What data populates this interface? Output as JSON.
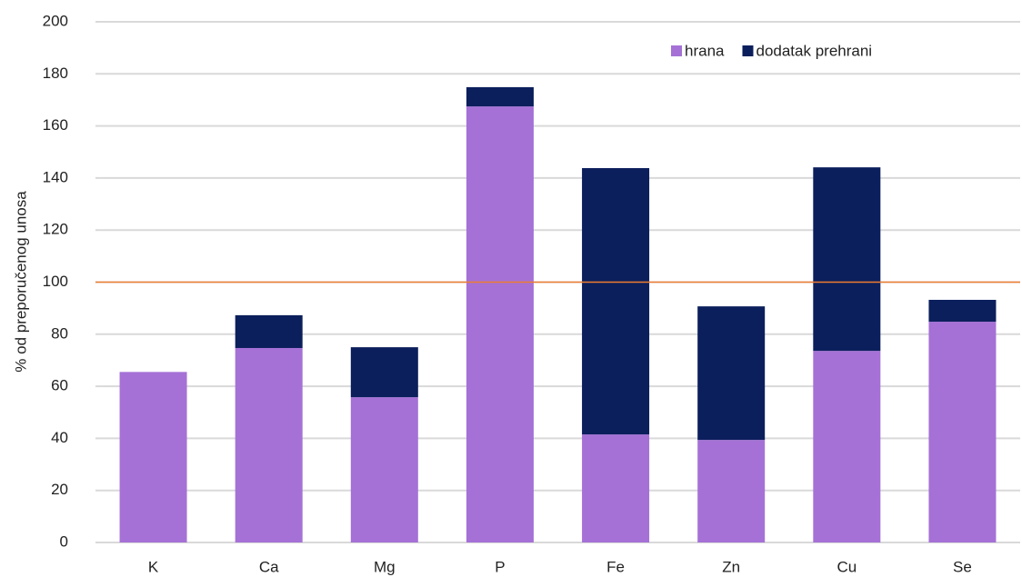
{
  "chart_data": {
    "type": "stacked_bar",
    "y_label": "% od preporučenog unosa",
    "categories": [
      "K",
      "Ca",
      "Mg",
      "P",
      "Fe",
      "Zn",
      "Cu",
      "Se"
    ],
    "series": [
      {
        "name": "hrana",
        "color": "#a571d6",
        "values": [
          65.5,
          74.7,
          55.8,
          167.5,
          41.5,
          39.4,
          73.6,
          84.8
        ]
      },
      {
        "name": "dodatak prehrani",
        "color": "#0b1f5c",
        "values": [
          0,
          12.6,
          19.2,
          7.4,
          102.3,
          51.3,
          70.5,
          8.4
        ]
      }
    ],
    "reference_line": 100,
    "reference_color": "#ed7d31",
    "ylim": [
      0,
      200
    ],
    "yticks": [
      0,
      20,
      40,
      60,
      80,
      100,
      120,
      140,
      160,
      180,
      200
    ],
    "grid": true,
    "legend": "top-right"
  }
}
